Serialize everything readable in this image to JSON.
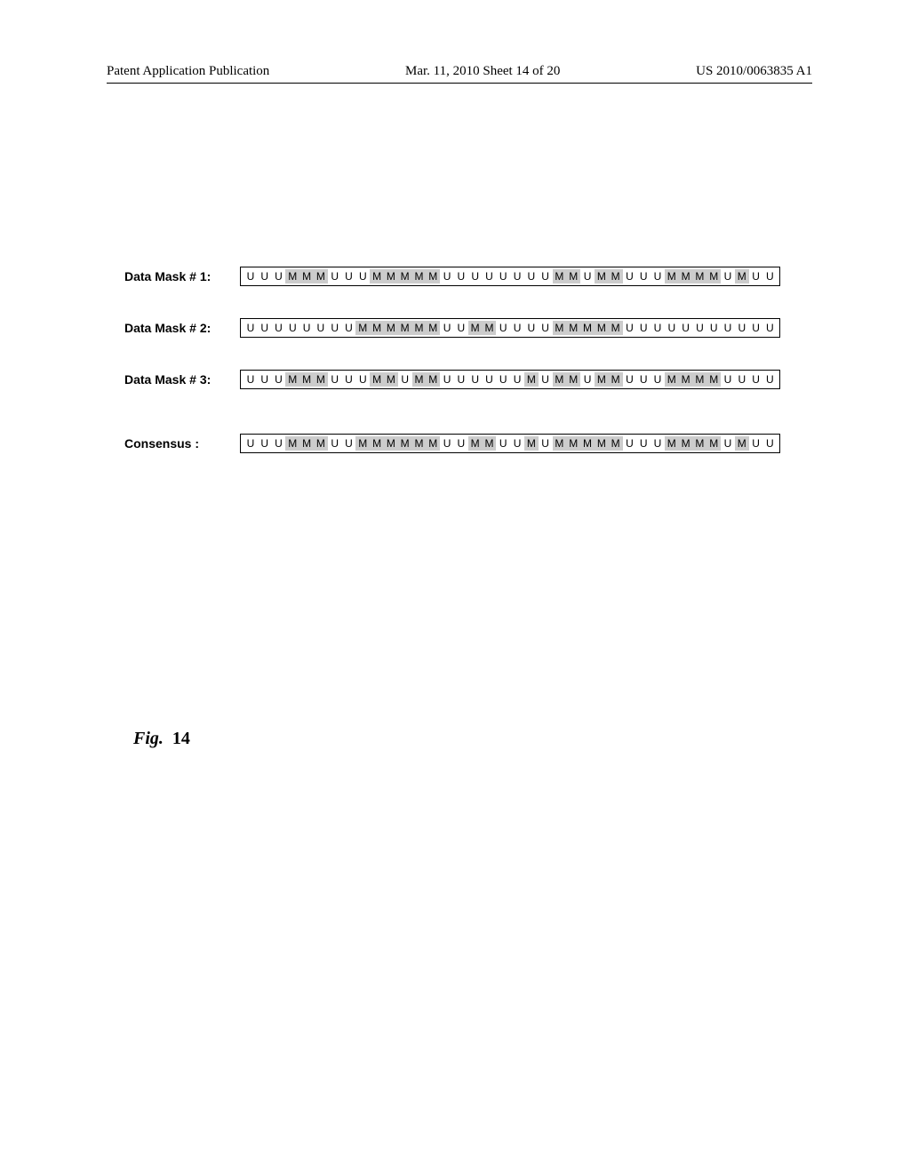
{
  "header": {
    "left": "Patent Application Publication",
    "center": "Mar. 11, 2010  Sheet 14 of 20",
    "right": "US 2010/0063835 A1"
  },
  "masks": [
    {
      "label": "Data Mask # 1:",
      "seq": [
        "U",
        "U",
        "U",
        "M",
        "M",
        "M",
        "U",
        "U",
        "U",
        "M",
        "M",
        "M",
        "M",
        "M",
        "U",
        "U",
        "U",
        "U",
        "U",
        "U",
        "U",
        "U",
        "M",
        "M",
        "U",
        "M",
        "M",
        "U",
        "U",
        "U",
        "M",
        "M",
        "M",
        "M",
        "U",
        "M",
        "U",
        "U"
      ]
    },
    {
      "label": "Data Mask # 2:",
      "seq": [
        "U",
        "U",
        "U",
        "U",
        "U",
        "U",
        "U",
        "U",
        "M",
        "M",
        "M",
        "M",
        "M",
        "M",
        "U",
        "U",
        "M",
        "M",
        "U",
        "U",
        "U",
        "U",
        "M",
        "M",
        "M",
        "M",
        "M",
        "U",
        "U",
        "U",
        "U",
        "U",
        "U",
        "U",
        "U",
        "U",
        "U",
        "U"
      ]
    },
    {
      "label": "Data Mask # 3:",
      "seq": [
        "U",
        "U",
        "U",
        "M",
        "M",
        "M",
        "U",
        "U",
        "U",
        "M",
        "M",
        "U",
        "M",
        "M",
        "U",
        "U",
        "U",
        "U",
        "U",
        "U",
        "M",
        "U",
        "M",
        "M",
        "U",
        "M",
        "M",
        "U",
        "U",
        "U",
        "M",
        "M",
        "M",
        "M",
        "U",
        "U",
        "U",
        "U"
      ]
    }
  ],
  "consensus": {
    "label": "Consensus :",
    "seq": [
      "U",
      "U",
      "U",
      "M",
      "M",
      "M",
      "U",
      "U",
      "M",
      "M",
      "M",
      "M",
      "M",
      "M",
      "U",
      "U",
      "M",
      "M",
      "U",
      "U",
      "M",
      "U",
      "M",
      "M",
      "M",
      "M",
      "M",
      "U",
      "U",
      "U",
      "M",
      "M",
      "M",
      "M",
      "U",
      "M",
      "U",
      "U"
    ]
  },
  "figure": {
    "prefix": "Fig.",
    "number": "14"
  },
  "colors": {
    "masked_bg": "#cccccc",
    "unmasked_bg": "#ffffff",
    "border": "#000000",
    "text": "#000000"
  }
}
